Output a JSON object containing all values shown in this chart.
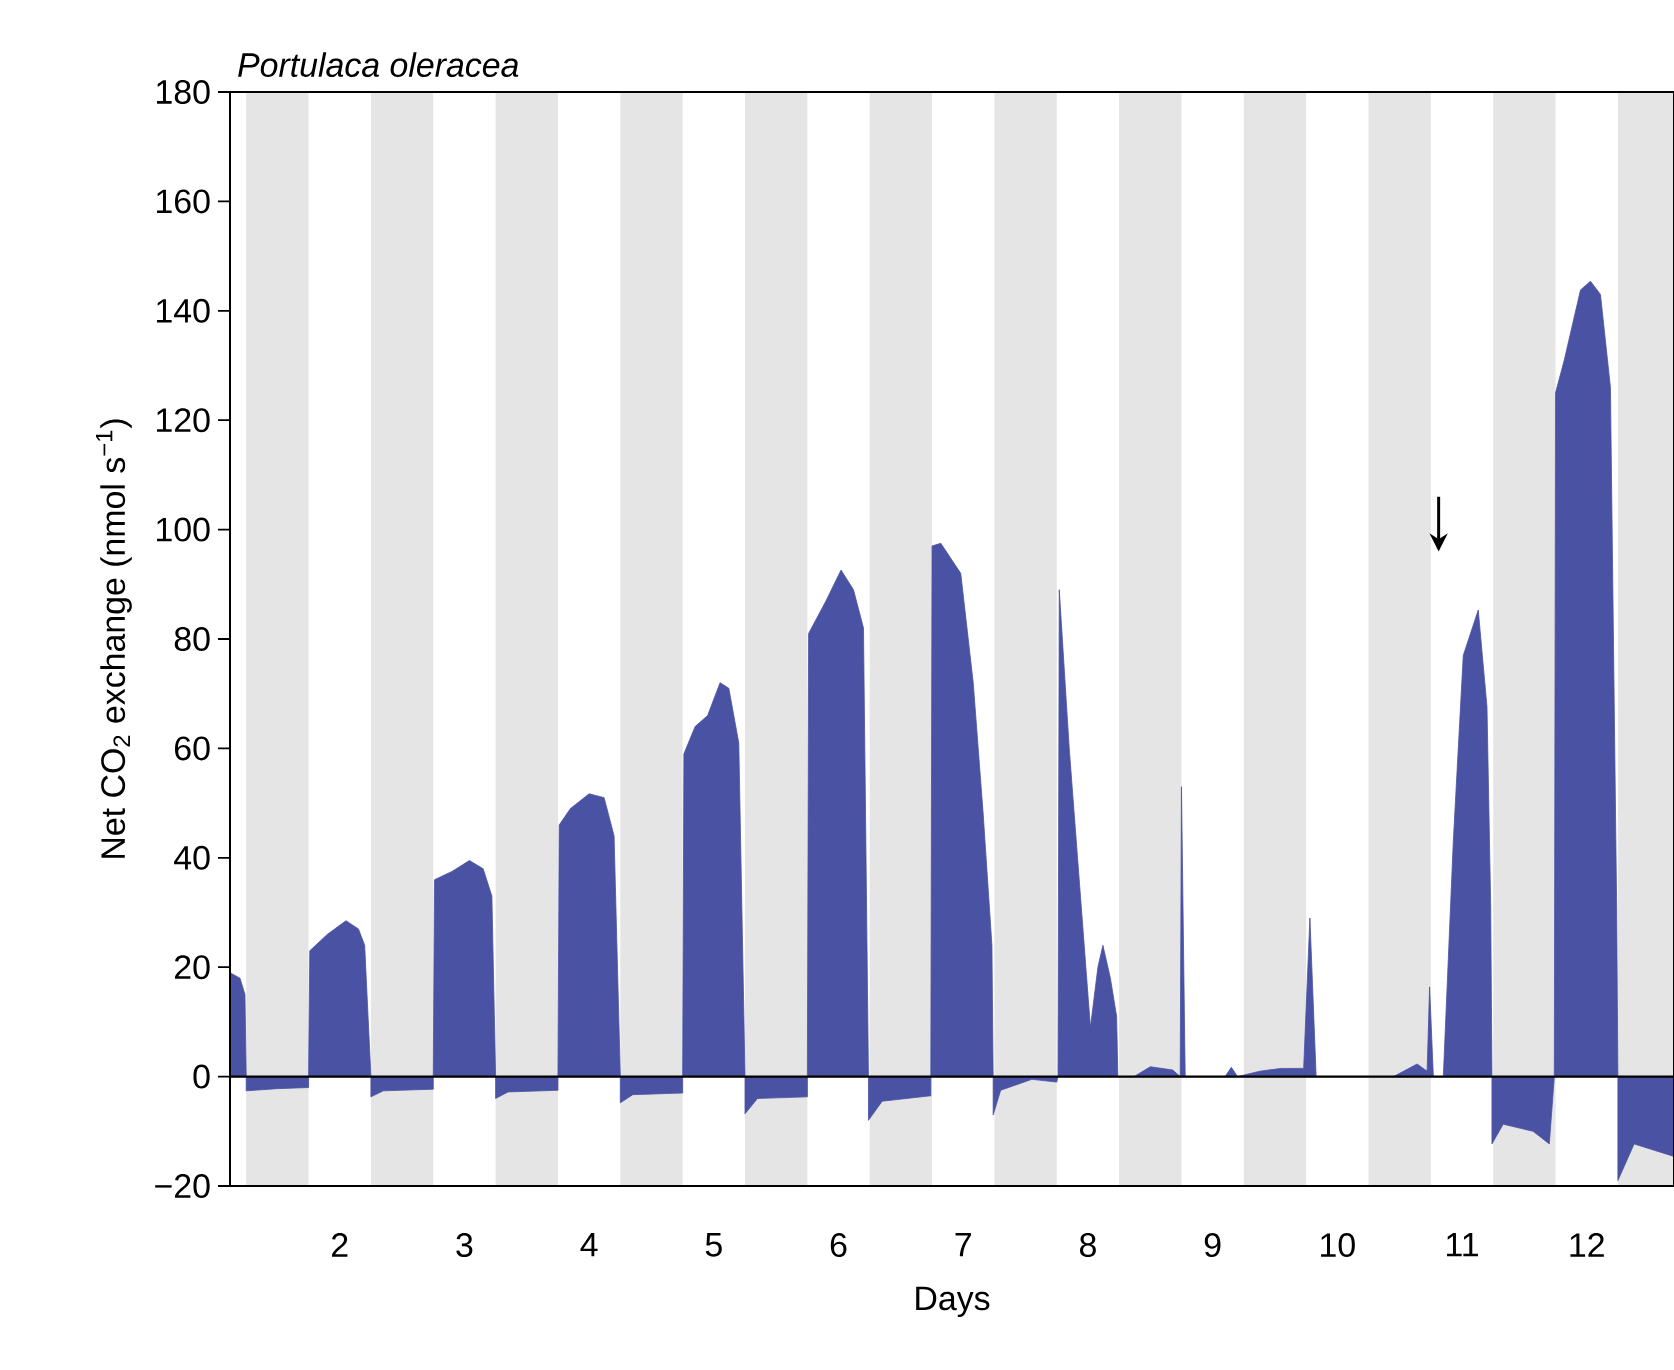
{
  "chart_data": {
    "type": "area",
    "title": "Portulaca oleracea",
    "xlabel": "Days",
    "ylabel": "Net CO$_{2}$ exchange (nmol s$^{−1}$)",
    "color": "#4a52a3",
    "x": [
      1.12,
      1.2,
      1.24,
      1.25,
      1.25,
      1.5,
      1.75,
      1.75,
      1.76,
      1.9,
      2.05,
      2.15,
      2.2,
      2.25,
      2.25,
      2.35,
      2.75,
      2.75,
      2.76,
      2.9,
      3.04,
      3.15,
      3.22,
      3.25,
      3.25,
      3.35,
      3.75,
      3.75,
      3.76,
      3.85,
      4.0,
      4.12,
      4.2,
      4.25,
      4.25,
      4.35,
      4.75,
      4.75,
      4.76,
      4.85,
      4.95,
      5.05,
      5.12,
      5.2,
      5.25,
      5.25,
      5.35,
      5.75,
      5.75,
      5.76,
      5.9,
      6.02,
      6.12,
      6.2,
      6.24,
      6.24,
      6.35,
      6.74,
      6.74,
      6.75,
      6.82,
      6.98,
      7.08,
      7.16,
      7.23,
      7.24,
      7.24,
      7.3,
      7.55,
      7.75,
      7.76,
      7.77,
      7.85,
      7.95,
      8.02,
      8.08,
      8.12,
      8.18,
      8.23,
      8.24,
      8.37,
      8.5,
      8.68,
      8.74,
      8.75,
      8.78,
      9.1,
      9.15,
      9.2,
      9.38,
      9.55,
      9.73,
      9.78,
      9.83,
      10.45,
      10.64,
      10.72,
      10.74,
      10.77,
      10.85,
      10.93,
      11.01,
      11.13,
      11.2,
      11.23,
      11.24,
      11.24,
      11.33,
      11.57,
      11.7,
      11.74,
      11.75,
      11.82,
      11.95,
      12.03,
      12.11,
      12.19,
      12.24,
      12.25,
      12.25,
      12.38,
      12.7
    ],
    "values": [
      19,
      18,
      15,
      0,
      -2.6,
      -2.2,
      -2,
      0,
      23,
      26,
      28.5,
      27,
      24,
      0,
      -3.7,
      -2.6,
      -2.3,
      0,
      36,
      37.5,
      39.5,
      38,
      33,
      0,
      -4,
      -2.8,
      -2.5,
      0,
      46,
      49,
      51.7,
      51,
      44,
      0,
      -4.8,
      -3.3,
      -3,
      0,
      59,
      64,
      66,
      72,
      71,
      61,
      0,
      -6.8,
      -4,
      -3.7,
      0,
      81,
      87,
      92.6,
      89,
      82,
      0,
      -8,
      -4.5,
      -3.5,
      0,
      97,
      97.5,
      92,
      72,
      48,
      24,
      0,
      -7,
      -2.5,
      -0.5,
      -1,
      0,
      89,
      60,
      30,
      9,
      20,
      24,
      18,
      11,
      0,
      0,
      1.8,
      1.2,
      0,
      53,
      0,
      0,
      1.7,
      0,
      1,
      1.5,
      1.5,
      29,
      0,
      0,
      2.3,
      1,
      16.4,
      0,
      0,
      43,
      77,
      85.3,
      67.6,
      31,
      0,
      -12.3,
      -8.7,
      -10,
      -12.3,
      0,
      125,
      131,
      143.8,
      145.4,
      143,
      126,
      31,
      0,
      -19,
      -12.3,
      -14.6
    ],
    "xlim": [
      1.12,
      12.7
    ],
    "ylim": [
      -20,
      180
    ],
    "xticks": [
      2,
      3,
      4,
      5,
      6,
      7,
      8,
      9,
      10,
      11,
      12
    ],
    "yticks": [
      {
        "value": -20,
        "label": "−20"
      },
      0,
      20,
      40,
      60,
      80,
      100,
      120,
      140,
      160,
      180
    ],
    "ref_lines": [
      {
        "axis": "y",
        "value": 0,
        "color": "#000000"
      }
    ],
    "bands": [
      {
        "axis": "x",
        "from": 1.25,
        "to": 1.75,
        "color": "#e5e5e5"
      },
      {
        "axis": "x",
        "from": 2.25,
        "to": 2.75,
        "color": "#e5e5e5"
      },
      {
        "axis": "x",
        "from": 3.25,
        "to": 3.75,
        "color": "#e5e5e5"
      },
      {
        "axis": "x",
        "from": 4.25,
        "to": 4.75,
        "color": "#e5e5e5"
      },
      {
        "axis": "x",
        "from": 5.25,
        "to": 5.75,
        "color": "#e5e5e5"
      },
      {
        "axis": "x",
        "from": 6.25,
        "to": 6.75,
        "color": "#e5e5e5"
      },
      {
        "axis": "x",
        "from": 7.25,
        "to": 7.75,
        "color": "#e5e5e5"
      },
      {
        "axis": "x",
        "from": 8.25,
        "to": 8.75,
        "color": "#e5e5e5"
      },
      {
        "axis": "x",
        "from": 9.25,
        "to": 9.75,
        "color": "#e5e5e5"
      },
      {
        "axis": "x",
        "from": 10.25,
        "to": 10.75,
        "color": "#e5e5e5"
      },
      {
        "axis": "x",
        "from": 11.25,
        "to": 11.75,
        "color": "#e5e5e5"
      },
      {
        "axis": "x",
        "from": 12.25,
        "to": 12.7,
        "color": "#e5e5e5"
      }
    ]
  }
}
